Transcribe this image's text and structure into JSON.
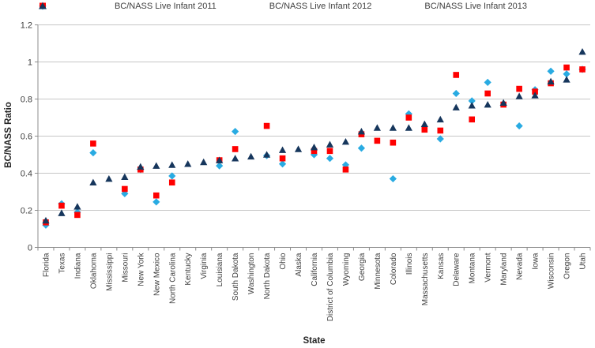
{
  "chart_data": {
    "type": "scatter",
    "title": "",
    "xlabel": "State",
    "ylabel": "BC/NASS Ratio",
    "ylim": [
      0,
      1.2
    ],
    "ytick_step": 0.2,
    "ytick_labels": [
      "0",
      "0.2",
      "0.4",
      "0.6",
      "0.8",
      "1",
      "1.2"
    ],
    "grid": true,
    "legend_position": "top-center",
    "categories": [
      "Florida",
      "Texas",
      "Indiana",
      "Oklahoma",
      "Mississippi",
      "Missouri",
      "New York",
      "New Mexico",
      "North Carolina",
      "Kentucky",
      "Virginia",
      "Louisiana",
      "South Dakota",
      "Washington",
      "North Dakota",
      "Ohio",
      "Alaska",
      "California",
      "District of Columbia",
      "Wyoming",
      "Georgia",
      "Minnesota",
      "Colorado",
      "Illinois",
      "Massachusetts",
      "Kansas",
      "Delaware",
      "Montana",
      "Vermont",
      "Maryland",
      "Nevada",
      "Iowa",
      "Wisconsin",
      "Oregon",
      "Utah"
    ],
    "series": [
      {
        "name": "BC/NASS Live Infant 2011",
        "marker": "diamond",
        "color": "#29ABE2",
        "values": [
          0.12,
          0.235,
          0.19,
          0.51,
          null,
          0.29,
          0.42,
          0.245,
          0.385,
          null,
          null,
          0.44,
          0.625,
          null,
          0.495,
          0.45,
          null,
          0.5,
          0.48,
          0.445,
          0.535,
          null,
          0.37,
          0.72,
          null,
          0.585,
          0.83,
          0.79,
          0.89,
          null,
          0.655,
          0.85,
          0.95,
          0.935,
          0.96
        ]
      },
      {
        "name": "BC/NASS Live Infant 2012",
        "marker": "square",
        "color": "#FF0000",
        "values": [
          0.135,
          0.225,
          0.175,
          0.56,
          null,
          0.315,
          0.42,
          0.28,
          0.35,
          null,
          null,
          0.47,
          0.53,
          null,
          0.655,
          0.48,
          null,
          0.52,
          0.52,
          0.42,
          0.61,
          0.575,
          0.565,
          0.7,
          0.635,
          0.63,
          0.93,
          0.69,
          0.83,
          0.77,
          0.855,
          0.84,
          0.885,
          0.97,
          0.96
        ]
      },
      {
        "name": "BC/NASS Live Infant 2013",
        "marker": "triangle",
        "color": "#16365C",
        "values": [
          0.145,
          0.185,
          0.22,
          0.35,
          0.37,
          0.38,
          0.435,
          0.44,
          0.445,
          0.45,
          0.46,
          0.47,
          0.48,
          0.49,
          0.5,
          0.525,
          0.53,
          0.54,
          0.555,
          0.57,
          0.625,
          0.645,
          0.645,
          0.645,
          0.665,
          0.69,
          0.755,
          0.765,
          0.77,
          0.78,
          0.815,
          0.82,
          0.895,
          0.905,
          1.055
        ]
      }
    ],
    "style": {
      "grid_color": "#C6C6C6",
      "axis_color": "#8C8C8C",
      "tick_label_color": "#3F3F3F"
    }
  }
}
